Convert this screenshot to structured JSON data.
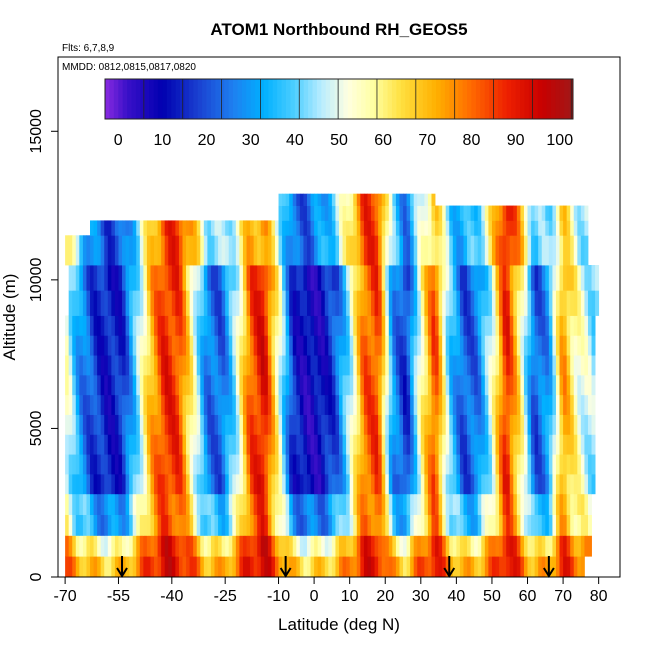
{
  "chart_data": {
    "type": "heatmap",
    "title": "ATOM1 Northbound RH_GEOS5",
    "subtitle_flights": "Flts: 6,7,8,9",
    "subtitle_dates": "MMDD: 0812,0815,0817,0820",
    "xlabel": "Latitude (deg N)",
    "ylabel": "Altitude (m)",
    "xlim": [
      -72,
      86
    ],
    "ylim": [
      0,
      17500
    ],
    "x_ticks": [
      -70,
      -55,
      -40,
      -25,
      -10,
      0,
      10,
      20,
      30,
      40,
      50,
      60,
      70,
      80
    ],
    "y_ticks": [
      0,
      5000,
      10000,
      15000
    ],
    "colorbar": {
      "range": [
        -3,
        103
      ],
      "ticks": [
        0,
        10,
        20,
        30,
        40,
        50,
        60,
        70,
        80,
        90,
        100
      ],
      "stops": [
        {
          "v": -3,
          "c": "#8a2be2"
        },
        {
          "v": 2,
          "c": "#3a10c8"
        },
        {
          "v": 10,
          "c": "#0000b0"
        },
        {
          "v": 18,
          "c": "#1a3fd0"
        },
        {
          "v": 26,
          "c": "#1e7ff0"
        },
        {
          "v": 33,
          "c": "#00b0ff"
        },
        {
          "v": 40,
          "c": "#4fcfff"
        },
        {
          "v": 46,
          "c": "#b8ecff"
        },
        {
          "v": 52,
          "c": "#ffffe0"
        },
        {
          "v": 58,
          "c": "#ffffa0"
        },
        {
          "v": 64,
          "c": "#ffe040"
        },
        {
          "v": 72,
          "c": "#ffb000"
        },
        {
          "v": 80,
          "c": "#ff6a00"
        },
        {
          "v": 88,
          "c": "#ee2000"
        },
        {
          "v": 96,
          "c": "#c80000"
        },
        {
          "v": 103,
          "c": "#a01818"
        }
      ]
    },
    "altitude_bands": [
      {
        "alt": [
          0,
          700
        ],
        "lat": [
          -70,
          76
        ]
      },
      {
        "alt": [
          700,
          1400
        ],
        "lat": [
          -70,
          78
        ]
      },
      {
        "alt": [
          1400,
          2800
        ],
        "lat": [
          -70,
          78
        ]
      },
      {
        "alt": [
          2800,
          8800
        ],
        "lat": [
          -70,
          79
        ]
      },
      {
        "alt": [
          8800,
          10500
        ],
        "lat": [
          -69,
          80
        ]
      },
      {
        "alt": [
          10500,
          11500
        ],
        "lat": [
          -70,
          77
        ]
      },
      {
        "alt": [
          11500,
          12000
        ],
        "lat": [
          -63,
          77
        ]
      },
      {
        "alt": [
          12000,
          12500
        ],
        "lat": [
          -10,
          77
        ]
      },
      {
        "alt": [
          12500,
          12900
        ],
        "lat": [
          -10,
          34
        ]
      }
    ],
    "rh_profile_by_latitude": [
      {
        "lat": -70,
        "rh": 55
      },
      {
        "lat": -66,
        "rh": 30
      },
      {
        "lat": -62,
        "rh": 18
      },
      {
        "lat": -58,
        "rh": 12
      },
      {
        "lat": -54,
        "rh": 15
      },
      {
        "lat": -50,
        "rh": 40
      },
      {
        "lat": -46,
        "rh": 70
      },
      {
        "lat": -42,
        "rh": 88
      },
      {
        "lat": -38,
        "rh": 85
      },
      {
        "lat": -34,
        "rh": 55
      },
      {
        "lat": -30,
        "rh": 25
      },
      {
        "lat": -26,
        "rh": 22
      },
      {
        "lat": -22,
        "rh": 45
      },
      {
        "lat": -18,
        "rh": 82
      },
      {
        "lat": -14,
        "rh": 92
      },
      {
        "lat": -10,
        "rh": 55
      },
      {
        "lat": -6,
        "rh": 15
      },
      {
        "lat": -2,
        "rh": 8
      },
      {
        "lat": 2,
        "rh": 10
      },
      {
        "lat": 6,
        "rh": 20
      },
      {
        "lat": 10,
        "rh": 45
      },
      {
        "lat": 14,
        "rh": 80
      },
      {
        "lat": 18,
        "rh": 85
      },
      {
        "lat": 22,
        "rh": 30
      },
      {
        "lat": 26,
        "rh": 15
      },
      {
        "lat": 30,
        "rh": 55
      },
      {
        "lat": 34,
        "rh": 85
      },
      {
        "lat": 38,
        "rh": 40
      },
      {
        "lat": 42,
        "rh": 20
      },
      {
        "lat": 46,
        "rh": 25
      },
      {
        "lat": 50,
        "rh": 50
      },
      {
        "lat": 54,
        "rh": 90
      },
      {
        "lat": 58,
        "rh": 60
      },
      {
        "lat": 62,
        "rh": 20
      },
      {
        "lat": 66,
        "rh": 30
      },
      {
        "lat": 70,
        "rh": 75
      },
      {
        "lat": 74,
        "rh": 55
      },
      {
        "lat": 78,
        "rh": 45
      },
      {
        "lat": 80,
        "rh": 40
      }
    ],
    "flight_start_markers_lat": [
      -54,
      -8,
      38,
      66
    ]
  }
}
